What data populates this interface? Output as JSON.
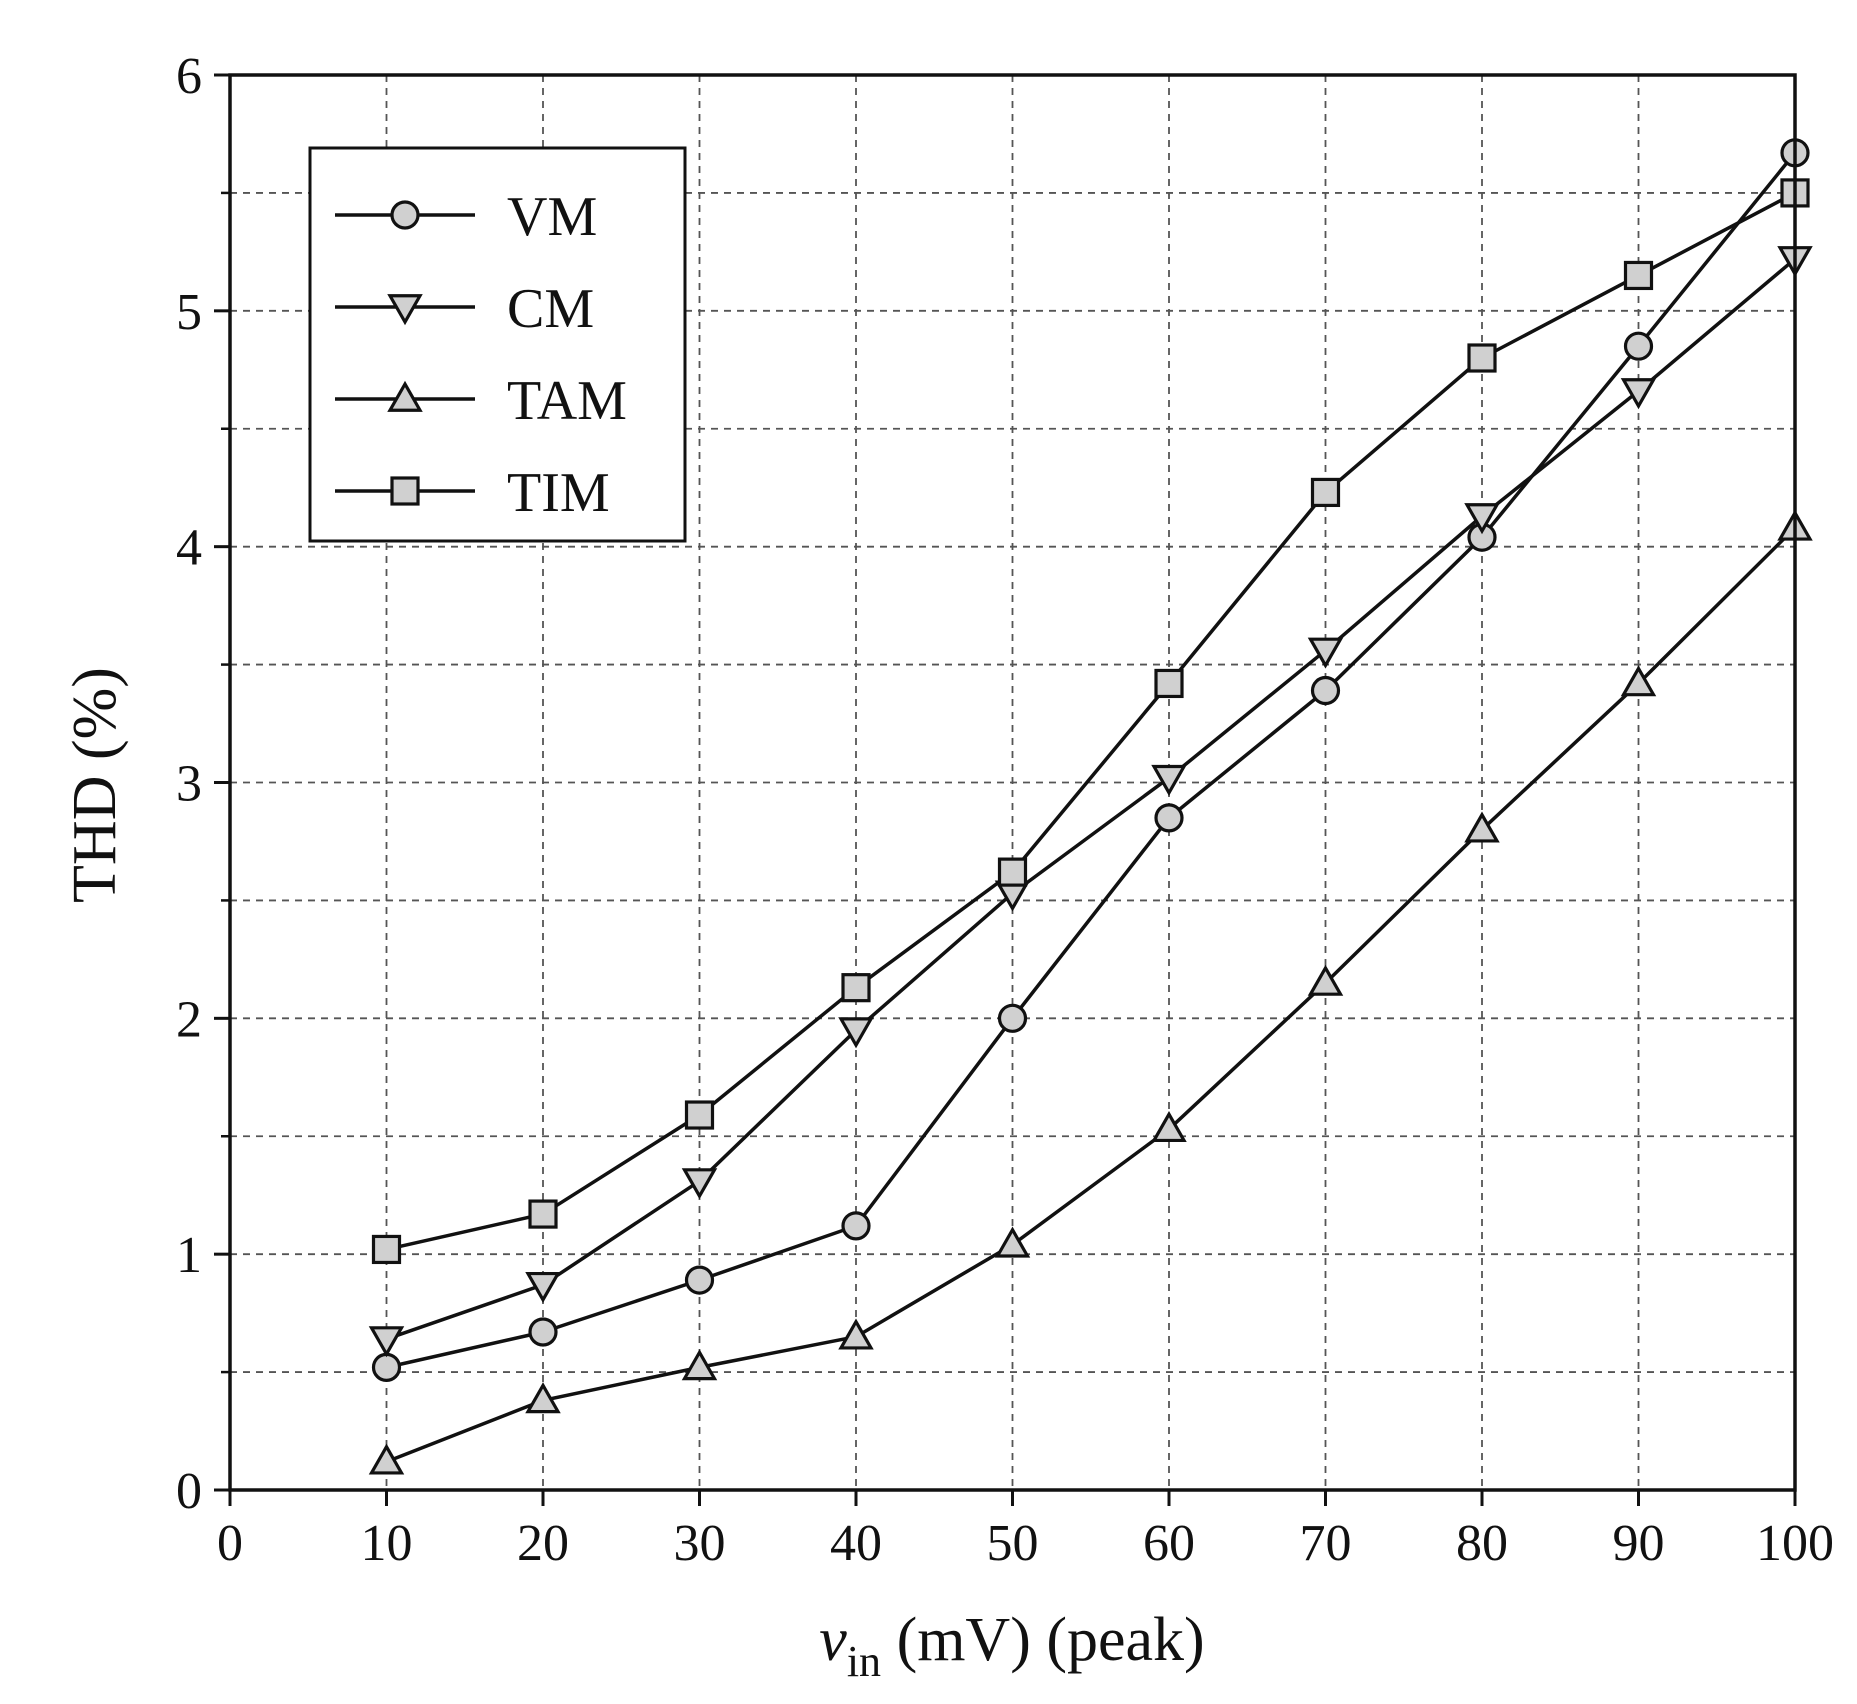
{
  "chart_data": {
    "type": "line",
    "title": "",
    "xlabel_var": "v",
    "xlabel_sub": "in",
    "xlabel_rest": " (mV) (peak)",
    "ylabel": "THD (%)",
    "xlim": [
      0,
      100
    ],
    "ylim": [
      0,
      6
    ],
    "xticks": [
      0,
      10,
      20,
      30,
      40,
      50,
      60,
      70,
      80,
      90,
      100
    ],
    "yticks": [
      0,
      1,
      2,
      3,
      4,
      5,
      6
    ],
    "grid": "dashed",
    "legend_position": "top-left",
    "x": [
      10,
      20,
      30,
      40,
      50,
      60,
      70,
      80,
      90,
      100
    ],
    "series": [
      {
        "name": "VM",
        "marker": "circle",
        "values": [
          0.52,
          0.67,
          0.89,
          1.12,
          2.0,
          2.85,
          3.39,
          4.04,
          4.85,
          5.67
        ]
      },
      {
        "name": "CM",
        "marker": "triangle-down",
        "values": [
          0.64,
          0.87,
          1.31,
          1.95,
          2.53,
          3.02,
          3.56,
          4.13,
          4.66,
          5.22
        ]
      },
      {
        "name": "TAM",
        "marker": "triangle-up",
        "values": [
          0.12,
          0.38,
          0.52,
          0.65,
          1.04,
          1.53,
          2.15,
          2.8,
          3.42,
          4.08
        ]
      },
      {
        "name": "TIM",
        "marker": "square",
        "values": [
          1.02,
          1.17,
          1.59,
          2.13,
          2.62,
          3.42,
          4.23,
          4.8,
          5.15,
          5.5
        ]
      }
    ],
    "colors": {
      "line": "#111111",
      "marker_fill": "#d0d0d0",
      "grid": "#555555"
    }
  }
}
